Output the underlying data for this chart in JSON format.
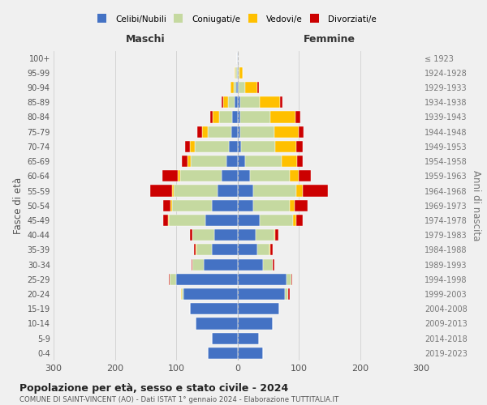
{
  "age_groups": [
    "0-4",
    "5-9",
    "10-14",
    "15-19",
    "20-24",
    "25-29",
    "30-34",
    "35-39",
    "40-44",
    "45-49",
    "50-54",
    "55-59",
    "60-64",
    "65-69",
    "70-74",
    "75-79",
    "80-84",
    "85-89",
    "90-94",
    "95-99",
    "100+"
  ],
  "birth_years": [
    "2019-2023",
    "2014-2018",
    "2009-2013",
    "2004-2008",
    "1999-2003",
    "1994-1998",
    "1989-1993",
    "1984-1988",
    "1979-1983",
    "1974-1978",
    "1969-1973",
    "1964-1968",
    "1959-1963",
    "1954-1958",
    "1949-1953",
    "1944-1948",
    "1939-1943",
    "1934-1938",
    "1929-1933",
    "1924-1928",
    "≤ 1923"
  ],
  "male": {
    "celibi": [
      48,
      42,
      68,
      78,
      88,
      100,
      55,
      42,
      38,
      52,
      42,
      32,
      26,
      18,
      14,
      10,
      8,
      5,
      2,
      1,
      1
    ],
    "coniugati": [
      0,
      0,
      0,
      0,
      3,
      10,
      18,
      25,
      35,
      60,
      65,
      72,
      68,
      58,
      55,
      38,
      22,
      10,
      4,
      2,
      0
    ],
    "vedovi": [
      0,
      0,
      0,
      0,
      1,
      1,
      0,
      1,
      0,
      1,
      2,
      2,
      3,
      5,
      8,
      10,
      10,
      8,
      5,
      1,
      0
    ],
    "divorziati": [
      0,
      0,
      0,
      0,
      0,
      1,
      2,
      3,
      5,
      8,
      12,
      36,
      26,
      10,
      8,
      8,
      5,
      3,
      0,
      0,
      0
    ]
  },
  "female": {
    "nubili": [
      42,
      35,
      58,
      68,
      78,
      80,
      42,
      32,
      30,
      36,
      26,
      26,
      20,
      12,
      6,
      5,
      5,
      5,
      2,
      1,
      0
    ],
    "coniugate": [
      0,
      0,
      0,
      0,
      5,
      8,
      15,
      20,
      30,
      55,
      60,
      70,
      65,
      60,
      55,
      55,
      48,
      32,
      10,
      2,
      0
    ],
    "vedove": [
      0,
      0,
      0,
      0,
      0,
      0,
      1,
      1,
      2,
      5,
      8,
      10,
      15,
      25,
      35,
      40,
      42,
      32,
      20,
      5,
      0
    ],
    "divorziate": [
      0,
      0,
      0,
      0,
      2,
      1,
      2,
      5,
      5,
      10,
      20,
      42,
      20,
      10,
      10,
      8,
      8,
      5,
      3,
      0,
      0
    ]
  },
  "colors": {
    "celibi": "#4472c4",
    "coniugati": "#c5d9a0",
    "vedovi": "#ffc000",
    "divorziati": "#cc0000"
  },
  "xlim": 300,
  "title": "Popolazione per età, sesso e stato civile - 2024",
  "subtitle": "COMUNE DI SAINT-VINCENT (AO) - Dati ISTAT 1° gennaio 2024 - Elaborazione TUTTITALIA.IT",
  "ylabel_left": "Fasce di età",
  "ylabel_right": "Anni di nascita",
  "xlabel_left": "Maschi",
  "xlabel_right": "Femmine",
  "bg_color": "#f0f0f0",
  "grid_color": "#d0d0d0"
}
